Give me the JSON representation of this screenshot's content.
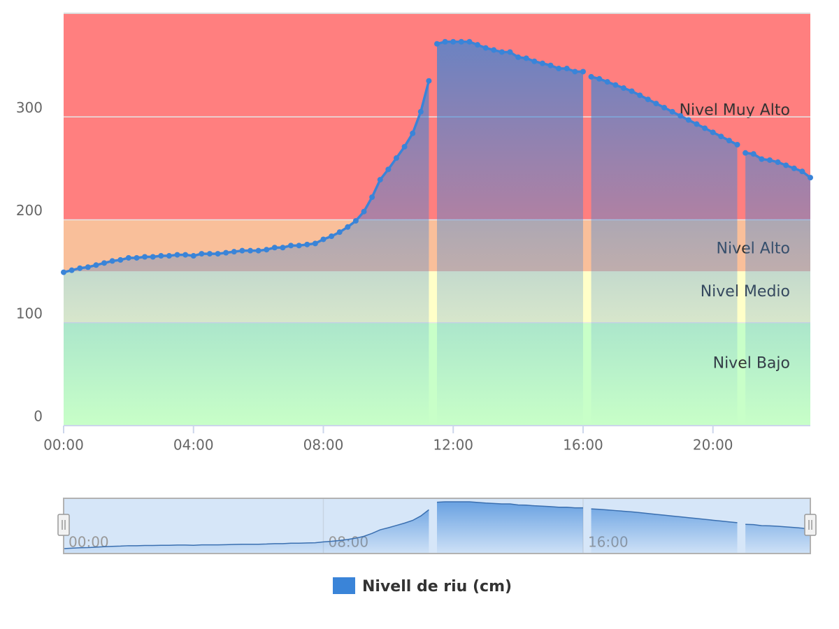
{
  "chart_data": {
    "type": "area",
    "x": [
      "00:00",
      "00:15",
      "00:30",
      "00:45",
      "01:00",
      "01:15",
      "01:30",
      "01:45",
      "02:00",
      "02:15",
      "02:30",
      "02:45",
      "03:00",
      "03:15",
      "03:30",
      "03:45",
      "04:00",
      "04:15",
      "04:30",
      "04:45",
      "05:00",
      "05:15",
      "05:30",
      "05:45",
      "06:00",
      "06:15",
      "06:30",
      "06:45",
      "07:00",
      "07:15",
      "07:30",
      "07:45",
      "08:00",
      "08:15",
      "08:30",
      "08:45",
      "09:00",
      "09:15",
      "09:30",
      "09:45",
      "10:00",
      "10:15",
      "10:30",
      "10:45",
      "11:00",
      "11:15",
      "11:22",
      "11:30",
      "11:45",
      "12:00",
      "12:15",
      "12:30",
      "12:45",
      "13:00",
      "13:15",
      "13:30",
      "13:45",
      "14:00",
      "14:15",
      "14:30",
      "14:45",
      "15:00",
      "15:15",
      "15:30",
      "15:45",
      "16:00",
      "16:07",
      "16:15",
      "16:30",
      "16:45",
      "17:00",
      "17:15",
      "17:30",
      "17:45",
      "18:00",
      "18:15",
      "18:30",
      "18:45",
      "19:00",
      "19:15",
      "19:30",
      "19:45",
      "20:00",
      "20:15",
      "20:30",
      "20:45",
      "20:52",
      "21:00",
      "21:15",
      "21:30",
      "21:45",
      "22:00",
      "22:15",
      "22:30",
      "22:45",
      "23:00"
    ],
    "series": [
      {
        "name": "Nivell de riu (cm)",
        "color": "#3a84d8",
        "values": [
          149,
          151,
          153,
          154,
          156,
          158,
          160,
          161,
          163,
          163,
          164,
          164,
          165,
          165,
          166,
          166,
          165,
          167,
          167,
          167,
          168,
          169,
          170,
          170,
          170,
          171,
          173,
          173,
          175,
          175,
          176,
          177,
          181,
          184,
          188,
          193,
          199,
          208,
          222,
          239,
          249,
          260,
          271,
          284,
          305,
          335,
          null,
          371,
          373,
          373,
          373,
          373,
          370,
          367,
          365,
          363,
          363,
          358,
          357,
          354,
          352,
          350,
          347,
          347,
          344,
          344,
          null,
          339,
          337,
          334,
          331,
          328,
          325,
          321,
          317,
          313,
          309,
          305,
          301,
          297,
          293,
          289,
          285,
          281,
          277,
          273,
          null,
          265,
          264,
          259,
          258,
          256,
          253,
          250,
          247,
          241
        ]
      }
    ],
    "xlim": [
      "00:00",
      "23:00"
    ],
    "xticks": [
      "00:00",
      "04:00",
      "08:00",
      "12:00",
      "16:00",
      "20:00"
    ],
    "ylim": [
      0,
      400
    ],
    "yticks": [
      0,
      100,
      200,
      300
    ],
    "grid": true,
    "plot_bands": [
      {
        "label": "Nivel Bajo",
        "from": 0,
        "to": 100,
        "color": "#c8ffc8"
      },
      {
        "label": "Nivel Medio",
        "from": 100,
        "to": 150,
        "color": "#ffffc8"
      },
      {
        "label": "Nivel Alto",
        "from": 150,
        "to": 200,
        "color": "#f9bf9a"
      },
      {
        "label": "Nivel Muy Alto",
        "from": 200,
        "to": 400,
        "color": "#ff7f7f"
      }
    ],
    "navigator": {
      "xticks": [
        "00:00",
        "08:00",
        "16:00"
      ]
    },
    "legend": "bottom"
  }
}
